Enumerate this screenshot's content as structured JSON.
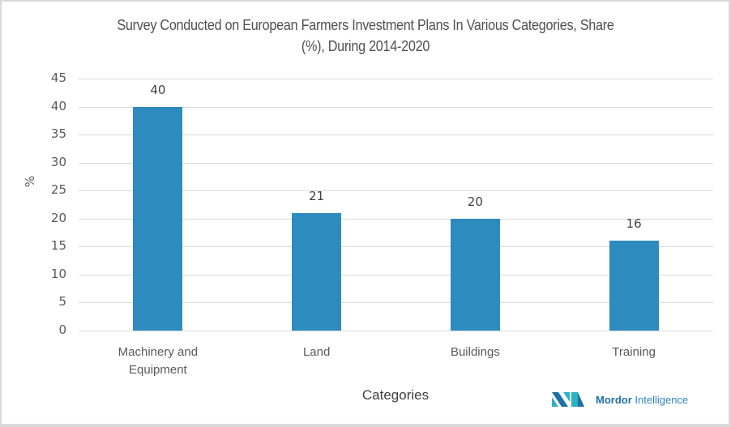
{
  "chart_data": {
    "type": "bar",
    "title": "Survey Conducted on European Farmers Investment Plans In Various Categories, Share (%), During 2014-2020",
    "title_lines": [
      "Survey Conducted on European Farmers Investment Plans In Various Categories, Share",
      "(%), During 2014-2020"
    ],
    "categories": [
      "Machinery and Equipment",
      "Land",
      "Buildings",
      "Training"
    ],
    "category_lines": [
      [
        "Machinery and",
        "Equipment"
      ],
      [
        "Land"
      ],
      [
        "Buildings"
      ],
      [
        "Training"
      ]
    ],
    "values": [
      40,
      21,
      20,
      16
    ],
    "xlabel": "Categories",
    "ylabel": "%",
    "ylim": [
      0,
      45
    ],
    "yticks": [
      0,
      5,
      10,
      15,
      20,
      25,
      30,
      35,
      40,
      45
    ],
    "grid": true,
    "legend": null,
    "bar_color": "#2e8bbf",
    "data_labels": [
      "40",
      "21",
      "20",
      "16"
    ]
  },
  "branding": {
    "logo_bold": "Mordor",
    "logo_rest": " Intelligence"
  }
}
